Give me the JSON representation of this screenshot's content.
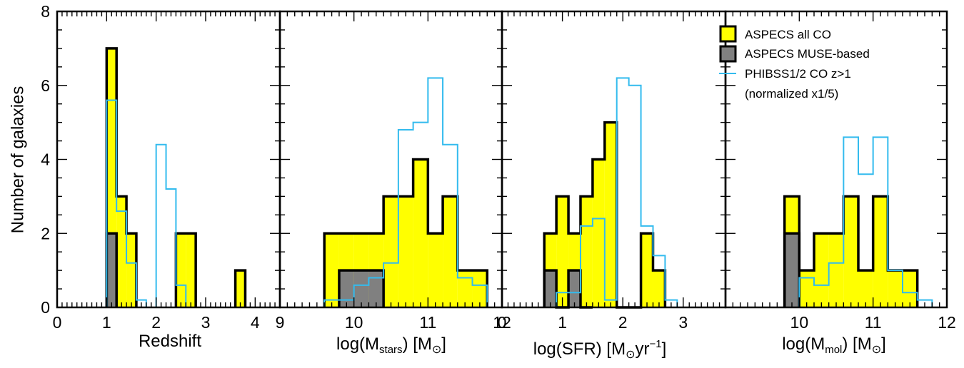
{
  "figure": {
    "ylabel": "Number of galaxies"
  },
  "legend": {
    "placement": "top-right of panel 3",
    "entries": [
      {
        "key": "all",
        "label": "ASPECS all CO",
        "fill": "#ffff00",
        "edge": "#000000"
      },
      {
        "key": "muse",
        "label": "ASPECS MUSE-based",
        "fill": "#808080",
        "edge": "#000000"
      },
      {
        "key": "phibss_l1",
        "label": "PHIBSS1/2 CO z>1",
        "line": "#33bbee"
      },
      {
        "key": "phibss_l2",
        "label": "(normalized x1/5)"
      }
    ]
  },
  "colors": {
    "all": "#ffff00",
    "muse": "#808080",
    "phibss": "#33bbee",
    "edge": "#000000"
  },
  "chart_data": [
    {
      "type": "bar",
      "name": "redshift",
      "xlabel": "Redshift",
      "xlim": [
        0,
        4.5
      ],
      "ylim": [
        0,
        8
      ],
      "xticks": [
        0,
        1,
        2,
        3,
        4
      ],
      "yticks": [
        0,
        2,
        4,
        6,
        8
      ],
      "xminor": 0.1,
      "yminor": 0.5,
      "bin_width": 0.2,
      "all_co": {
        "edges": [
          1.0,
          1.2,
          1.4,
          1.6
        ],
        "values": [
          7,
          3,
          2
        ]
      },
      "all_co_extra": [
        {
          "edges": [
            2.4,
            2.6,
            2.8
          ],
          "values": [
            2,
            2
          ]
        },
        {
          "edges": [
            3.6,
            3.8
          ],
          "values": [
            1
          ]
        }
      ],
      "muse": {
        "edges": [
          1.0,
          1.2
        ],
        "values": [
          2
        ]
      },
      "phibss": {
        "edges": [
          1.0,
          1.2,
          1.4,
          1.6,
          1.8,
          2.0,
          2.2,
          2.4,
          2.6,
          2.8
        ],
        "values": [
          5.6,
          2.6,
          1.2,
          0.2,
          0,
          4.4,
          3.2,
          0.6,
          0
        ]
      }
    },
    {
      "type": "bar",
      "name": "stellar-mass",
      "xlabel": "log(M_stars) [M_sun]",
      "xlim": [
        9,
        12
      ],
      "ylim": [
        0,
        8
      ],
      "xticks": [
        9,
        10,
        11,
        12
      ],
      "yticks": [
        0,
        2,
        4,
        6,
        8
      ],
      "xminor": 0.1,
      "yminor": 0.5,
      "bin_width": 0.2,
      "all_co": {
        "edges": [
          9.6,
          9.8,
          10.0,
          10.2,
          10.4,
          10.6,
          10.8,
          11.0,
          11.2,
          11.4,
          11.6,
          11.8
        ],
        "values": [
          2,
          2,
          2,
          2,
          3,
          3,
          4,
          2,
          3,
          1,
          1
        ]
      },
      "muse": {
        "edges": [
          9.8,
          10.0,
          10.2,
          10.4
        ],
        "values": [
          1,
          1,
          1
        ]
      },
      "phibss": {
        "edges": [
          9.6,
          9.8,
          10.0,
          10.2,
          10.4,
          10.6,
          10.8,
          11.0,
          11.2,
          11.4,
          11.6,
          11.8
        ],
        "values": [
          0.2,
          0.2,
          0.6,
          0.8,
          1.2,
          4.8,
          5.0,
          6.2,
          4.4,
          0.8,
          0.6
        ]
      }
    },
    {
      "type": "bar",
      "name": "sfr",
      "xlabel": "log(SFR) [M_sun yr^-1]",
      "xlim": [
        0,
        3.7
      ],
      "ylim": [
        0,
        8
      ],
      "xticks": [
        0,
        1,
        2,
        3
      ],
      "yticks": [
        0,
        2,
        4,
        6,
        8
      ],
      "xminor": 0.1,
      "yminor": 0.5,
      "bin_width": 0.2,
      "all_co": {
        "edges": [
          0.7,
          0.9,
          1.1,
          1.3,
          1.5,
          1.7,
          1.9,
          2.1,
          2.3,
          2.5,
          2.7
        ],
        "values": [
          2,
          3,
          2,
          3,
          4,
          5,
          0,
          0,
          2,
          1
        ]
      },
      "muse": {
        "edges": [
          0.7,
          0.9,
          1.1,
          1.3,
          1.5
        ],
        "values": [
          1,
          0,
          1,
          0
        ]
      },
      "phibss": {
        "edges": [
          0.9,
          1.1,
          1.3,
          1.5,
          1.7,
          1.9,
          2.1,
          2.3,
          2.5,
          2.7,
          2.9
        ],
        "values": [
          0.4,
          0.4,
          2.2,
          2.4,
          0.2,
          6.2,
          6.0,
          2.2,
          1.4,
          0.2
        ]
      }
    },
    {
      "type": "bar",
      "name": "molecular-mass",
      "xlabel": "log(M_mol) [M_sun]",
      "xlim": [
        9,
        12
      ],
      "ylim": [
        0,
        8
      ],
      "xticks": [
        10,
        11,
        12
      ],
      "yticks": [
        0,
        2,
        4,
        6,
        8
      ],
      "xminor": 0.1,
      "yminor": 0.5,
      "bin_width": 0.2,
      "all_co": {
        "edges": [
          9.8,
          10.0,
          10.2,
          10.4,
          10.6,
          10.8,
          11.0,
          11.2,
          11.4,
          11.6
        ],
        "values": [
          3,
          1,
          2,
          2,
          3,
          1,
          3,
          1,
          1
        ]
      },
      "muse": {
        "edges": [
          9.8,
          10.0
        ],
        "values": [
          2
        ]
      },
      "phibss": {
        "edges": [
          10.0,
          10.2,
          10.4,
          10.6,
          10.8,
          11.0,
          11.2,
          11.4,
          11.6,
          11.8
        ],
        "values": [
          0.8,
          0.6,
          1.2,
          4.6,
          3.6,
          4.6,
          1.0,
          0.4,
          0.2
        ]
      }
    }
  ]
}
